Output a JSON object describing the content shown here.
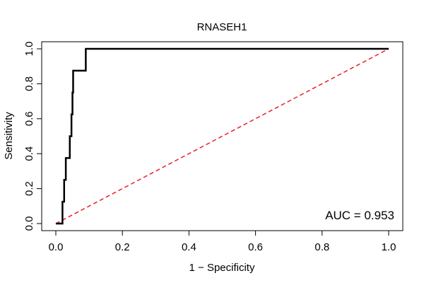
{
  "chart_data": {
    "type": "line",
    "title": "RNASEH1",
    "xlabel": "1 − Specificity",
    "ylabel": "Sensitivity",
    "xlim": [
      0,
      1
    ],
    "ylim": [
      0,
      1
    ],
    "xticks": [
      "0.0",
      "0.2",
      "0.4",
      "0.6",
      "0.8",
      "1.0"
    ],
    "yticks": [
      "0.0",
      "0.2",
      "0.4",
      "0.6",
      "0.8",
      "1.0"
    ],
    "grid": false,
    "legend": "none",
    "annotation": "AUC = 0.953",
    "series": [
      {
        "style": "roc-curve",
        "color": "#000000",
        "x": [
          0.0,
          0.02,
          0.02,
          0.025,
          0.025,
          0.03,
          0.03,
          0.042,
          0.042,
          0.047,
          0.047,
          0.05,
          0.05,
          0.052,
          0.052,
          0.09,
          0.09,
          1.0
        ],
        "y": [
          0.0,
          0.0,
          0.125,
          0.125,
          0.25,
          0.25,
          0.375,
          0.375,
          0.5,
          0.5,
          0.625,
          0.625,
          0.75,
          0.75,
          0.875,
          0.875,
          1.0,
          1.0
        ]
      },
      {
        "style": "reference-diagonal",
        "color": "#e8202a",
        "dashed": true,
        "x": [
          0,
          1
        ],
        "y": [
          0,
          1
        ]
      }
    ]
  }
}
